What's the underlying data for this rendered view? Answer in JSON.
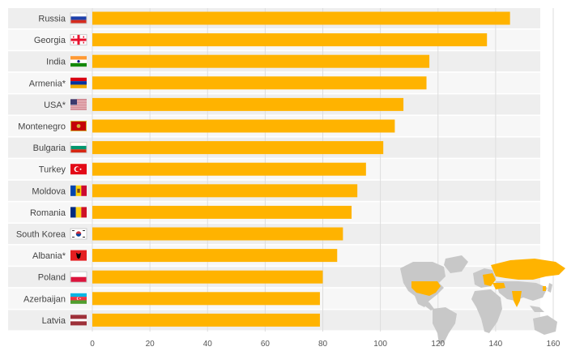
{
  "chart_data": {
    "type": "bar",
    "orientation": "horizontal",
    "categories": [
      "Russia",
      "Georgia",
      "India",
      "Armenia*",
      "USA*",
      "Montenegro",
      "Bulgaria",
      "Turkey",
      "Moldova",
      "Romania",
      "South Korea",
      "Albania*",
      "Poland",
      "Azerbaijan",
      "Latvia"
    ],
    "values": [
      145,
      137,
      117,
      116,
      108,
      105,
      101,
      95,
      92,
      90,
      87,
      85,
      80,
      79,
      79
    ],
    "xlim": [
      0,
      160
    ],
    "xticks": [
      0,
      20,
      40,
      60,
      80,
      100,
      120,
      140,
      160
    ],
    "grid": true,
    "bar_color": "#FFB300",
    "row_band_colors": [
      "#EEEEEE",
      "#F7F7F7"
    ],
    "map_highlight_color": "#FFB300",
    "map_base_color": "#C8C8C8",
    "flag_icons": [
      "russia-flag-icon",
      "georgia-flag-icon",
      "india-flag-icon",
      "armenia-flag-icon",
      "usa-flag-icon",
      "montenegro-flag-icon",
      "bulgaria-flag-icon",
      "turkey-flag-icon",
      "moldova-flag-icon",
      "romania-flag-icon",
      "south-korea-flag-icon",
      "albania-flag-icon",
      "poland-flag-icon",
      "azerbaijan-flag-icon",
      "latvia-flag-icon"
    ]
  }
}
